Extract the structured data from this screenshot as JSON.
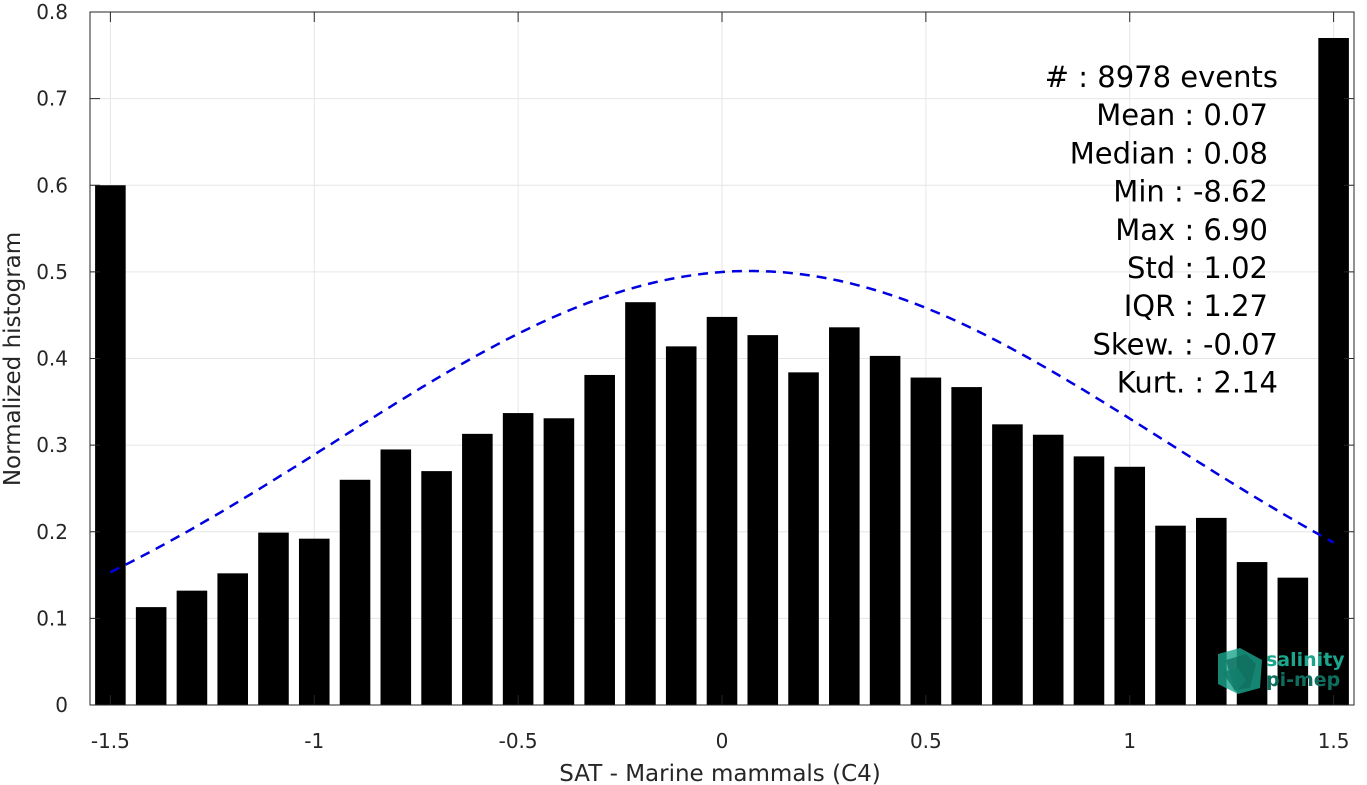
{
  "chart_data": {
    "type": "bar",
    "xlabel": "SAT - Marine mammals (C4)",
    "ylabel": "Normalized histogram",
    "xlim": [
      -1.55,
      1.55
    ],
    "ylim": [
      0,
      0.8
    ],
    "xticks": [
      -1.5,
      -1,
      -0.5,
      0,
      0.5,
      1,
      1.5
    ],
    "xtick_labels": [
      "-1.5",
      "-1",
      "-0.5",
      "0",
      "0.5",
      "1",
      "1.5"
    ],
    "yticks": [
      0,
      0.1,
      0.2,
      0.3,
      0.4,
      0.5,
      0.6,
      0.7,
      0.8
    ],
    "ytick_labels": [
      "0",
      "0.1",
      "0.2",
      "0.3",
      "0.4",
      "0.5",
      "0.6",
      "0.7",
      "0.8"
    ],
    "grid": true,
    "bar_color": "#000000",
    "bar_width": 0.075,
    "bars": {
      "x": [
        -1.5,
        -1.4,
        -1.3,
        -1.2,
        -1.1,
        -1.0,
        -0.9,
        -0.8,
        -0.7,
        -0.6,
        -0.5,
        -0.4,
        -0.3,
        -0.2,
        -0.1,
        0.0,
        0.1,
        0.2,
        0.3,
        0.4,
        0.5,
        0.6,
        0.7,
        0.8,
        0.9,
        1.0,
        1.1,
        1.2,
        1.3,
        1.4,
        1.5
      ],
      "values": [
        0.6,
        0.113,
        0.132,
        0.152,
        0.199,
        0.192,
        0.26,
        0.295,
        0.27,
        0.313,
        0.337,
        0.331,
        0.381,
        0.465,
        0.414,
        0.448,
        0.427,
        0.384,
        0.436,
        0.403,
        0.378,
        0.367,
        0.324,
        0.312,
        0.287,
        0.275,
        0.207,
        0.216,
        0.165,
        0.147,
        0.77
      ]
    },
    "fit_curve": {
      "type": "gaussian",
      "color": "#0000e0",
      "style": "dashed",
      "mean": 0.07,
      "std": 1.02,
      "peak": 0.501,
      "x_range": [
        -1.5,
        1.5
      ]
    },
    "stats": [
      {
        "label": "#  : 8978 events"
      },
      {
        "label": "Mean : 0.07"
      },
      {
        "label": "Median : 0.08"
      },
      {
        "label": "Min : -8.62"
      },
      {
        "label": "Max : 6.90"
      },
      {
        "label": "Std : 1.02"
      },
      {
        "label": "IQR : 1.27"
      },
      {
        "label": "Skew. : -0.07"
      },
      {
        "label": "Kurt. : 2.14"
      }
    ]
  },
  "logo": {
    "line1": "salinity",
    "line2": "pi-mep",
    "colors": [
      "#1aa58c",
      "#0f6e5e"
    ]
  }
}
